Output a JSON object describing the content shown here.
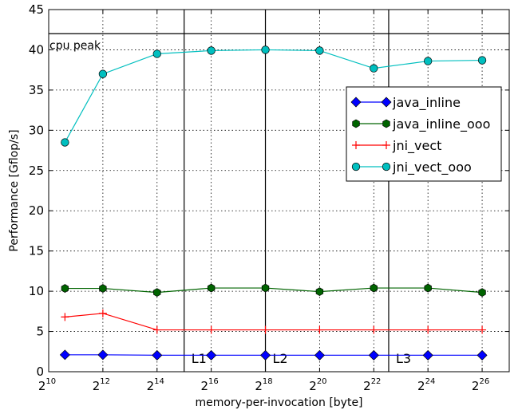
{
  "chart_data": {
    "type": "line",
    "xlabel": "memory-per-invocation [byte]",
    "ylabel": "Performance [Gflop/s]",
    "x_scale": "log2",
    "xlim_exponent": [
      10,
      27
    ],
    "ylim": [
      0,
      45
    ],
    "grid": true,
    "legend_position": "right",
    "x_ticks": [
      {
        "base": "2",
        "exp": "10"
      },
      {
        "base": "2",
        "exp": "12"
      },
      {
        "base": "2",
        "exp": "14"
      },
      {
        "base": "2",
        "exp": "16"
      },
      {
        "base": "2",
        "exp": "18"
      },
      {
        "base": "2",
        "exp": "20"
      },
      {
        "base": "2",
        "exp": "22"
      },
      {
        "base": "2",
        "exp": "24"
      },
      {
        "base": "2",
        "exp": "26"
      }
    ],
    "y_ticks": [
      "0",
      "5",
      "10",
      "15",
      "20",
      "25",
      "30",
      "35",
      "40",
      "45"
    ],
    "x_exponents": [
      10.6,
      12,
      14,
      16,
      18,
      20,
      22,
      24,
      26
    ],
    "series": [
      {
        "name": "java_inline",
        "color": "#0000ff",
        "marker": "diamond",
        "values": [
          2.1,
          2.1,
          2.05,
          2.05,
          2.05,
          2.05,
          2.05,
          2.05,
          2.05
        ]
      },
      {
        "name": "java_inline_ooo",
        "color": "#006400",
        "marker": "hexagon",
        "values": [
          10.35,
          10.35,
          9.85,
          10.4,
          10.4,
          9.95,
          10.4,
          10.4,
          9.85
        ]
      },
      {
        "name": "jni_vect",
        "color": "#ff0000",
        "marker": "plus",
        "values": [
          6.8,
          7.25,
          5.2,
          5.2,
          5.2,
          5.2,
          5.2,
          5.2,
          5.2
        ]
      },
      {
        "name": "jni_vect_ooo",
        "color": "#00bfbf",
        "marker": "circle",
        "values": [
          28.5,
          37.0,
          39.5,
          39.9,
          40.0,
          39.9,
          37.7,
          38.6,
          38.7
        ]
      }
    ],
    "reference_line": {
      "label": "cpu peak",
      "value": 42
    },
    "cache_boundaries": [
      {
        "label": "L1",
        "exponent": 15
      },
      {
        "label": "L2",
        "exponent": 18
      },
      {
        "label": "L3",
        "exponent": 22.55
      }
    ]
  }
}
